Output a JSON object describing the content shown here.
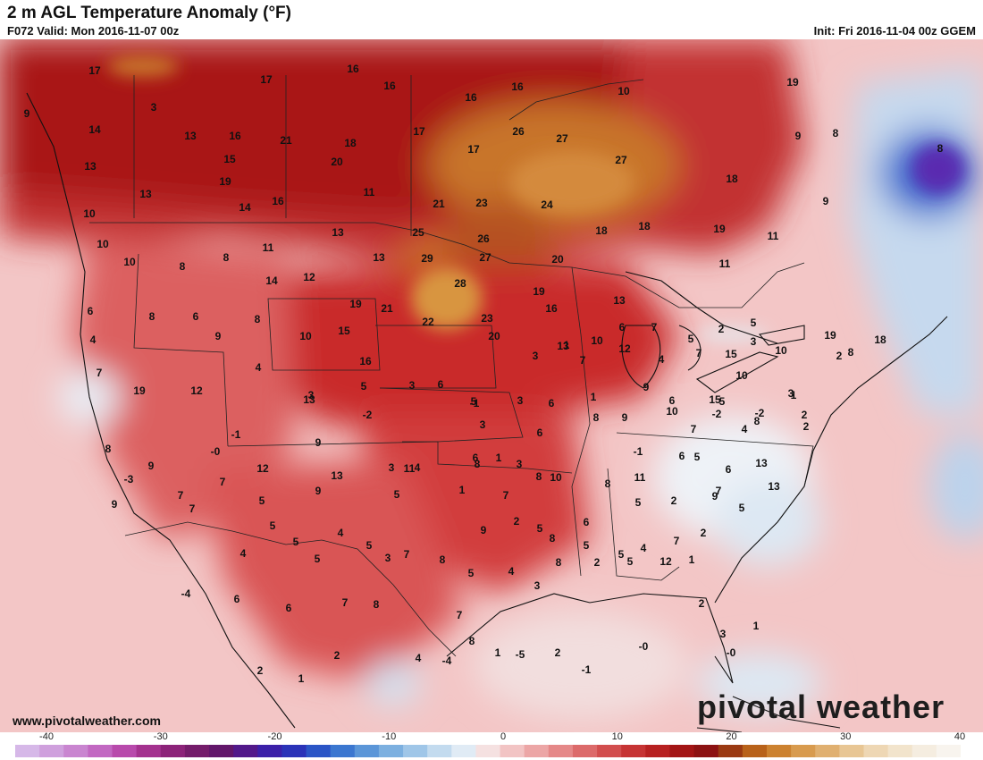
{
  "header": {
    "title": "2 m AGL Temperature Anomaly (°F)",
    "valid": "F072 Valid: Mon 2016-11-07 00z",
    "init": "Init: Fri 2016-11-04 00z GGEM"
  },
  "footer": {
    "website": "www.pivotalweather.com",
    "brand": "pivotal weather"
  },
  "colorbar": {
    "ticks": [
      "-40",
      "-30",
      "-20",
      "-10",
      "0",
      "10",
      "20",
      "30",
      "40"
    ],
    "colors": [
      "#d6b8e8",
      "#cfa0dd",
      "#c985d0",
      "#c268c2",
      "#b84aac",
      "#a4328f",
      "#8c2379",
      "#741c6a",
      "#62176a",
      "#52198a",
      "#3b20a8",
      "#2a33b8",
      "#2a55c6",
      "#3b77d0",
      "#5b96d8",
      "#7cb0e0",
      "#9fc6e8",
      "#c3dbef",
      "#e0ebf5",
      "#f5e1e1",
      "#f2c4c4",
      "#eca6a6",
      "#e58888",
      "#dc6a6a",
      "#d24e4e",
      "#c63434",
      "#b72121",
      "#a31515",
      "#8c1212",
      "#9a3a12",
      "#b8621a",
      "#cc8230",
      "#d89b4e",
      "#e0b070",
      "#e8c694",
      "#eed7b4",
      "#f2e4cc",
      "#f5ede0",
      "#f8f4ee"
    ]
  },
  "map_labels": [
    "17",
    "17",
    "16",
    "16",
    "16",
    "16",
    "10",
    "19",
    "9",
    "3",
    "8",
    "9",
    "14",
    "13",
    "16",
    "21",
    "18",
    "17",
    "17",
    "26",
    "27",
    "8",
    "15",
    "20",
    "27",
    "13",
    "13",
    "19",
    "14",
    "16",
    "11",
    "21",
    "23",
    "24",
    "18",
    "9",
    "10",
    "10",
    "11",
    "10",
    "13",
    "25",
    "26",
    "18",
    "18",
    "19",
    "11",
    "8",
    "8",
    "14",
    "12",
    "13",
    "29",
    "27",
    "20",
    "11",
    "6",
    "8",
    "6",
    "8",
    "19",
    "21",
    "28",
    "19",
    "13",
    "16",
    "7",
    "6",
    "5",
    "4",
    "9",
    "10",
    "15",
    "22",
    "23",
    "20",
    "16",
    "10",
    "13",
    "7",
    "2",
    "5",
    "3",
    "10",
    "19",
    "18",
    "15",
    "12",
    "13",
    "5",
    "3",
    "5",
    "3",
    "1",
    "4",
    "7",
    "7",
    "19",
    "12",
    "4",
    "3",
    "6",
    "6",
    "1",
    "6",
    "15",
    "10",
    "2",
    "8",
    "3",
    "-2",
    "-1",
    "3",
    "3",
    "6",
    "8",
    "9",
    "9",
    "10",
    "7",
    "-2",
    "5",
    "-2",
    "1",
    "-1",
    "9",
    "3",
    "4",
    "6",
    "1",
    "8",
    "-1",
    "6",
    "4",
    "8",
    "2",
    "2",
    "8",
    "9",
    "-0",
    "12",
    "13",
    "11",
    "8",
    "3",
    "10",
    "8",
    "11",
    "5",
    "6",
    "13",
    "13",
    "-3",
    "7",
    "7",
    "5",
    "9",
    "5",
    "1",
    "7",
    "5",
    "6",
    "5",
    "2",
    "7",
    "5",
    "9",
    "7",
    "5",
    "5",
    "4",
    "5",
    "7",
    "8",
    "9",
    "2",
    "8",
    "5",
    "5",
    "4",
    "7",
    "2",
    "9",
    "4",
    "5",
    "3",
    "5",
    "4",
    "3",
    "8",
    "2",
    "5",
    "12",
    "1",
    "2",
    "-4",
    "6",
    "6",
    "7",
    "8",
    "7",
    "8",
    "1",
    "-5",
    "2",
    "-1",
    "-0",
    "3",
    "-0",
    "1",
    "2",
    "1",
    "2",
    "4",
    "-4"
  ],
  "legend_note": ""
}
